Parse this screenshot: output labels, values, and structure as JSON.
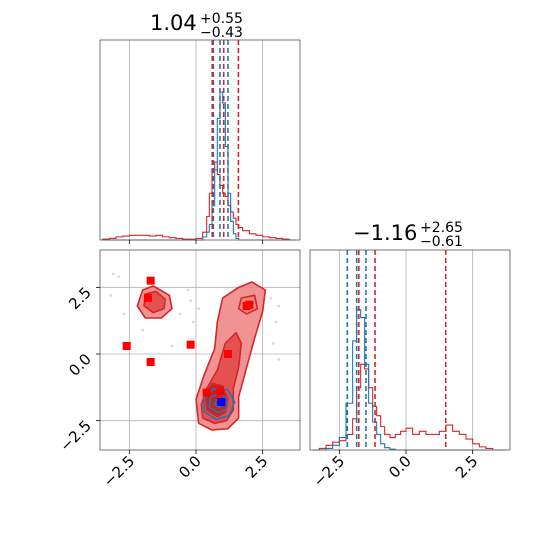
{
  "chart_data": {
    "type": "corner",
    "parameters": [
      {
        "name": "",
        "title": {
          "median": "1.04",
          "plus": "+0.55",
          "minus": "−0.43"
        }
      },
      {
        "name": "",
        "title": {
          "median": "−1.16",
          "plus": "+2.65",
          "minus": "−0.61"
        }
      }
    ],
    "axis_range": [
      -3.6,
      3.9
    ],
    "ticks": [
      -2.5,
      0.0,
      2.5
    ],
    "tick_labels": [
      "−2.5",
      "0.0",
      "2.5"
    ],
    "grid": true,
    "colors": {
      "blue": "#1f77b4",
      "red": "#d62728",
      "red_fill": "#f08080",
      "square_red": "#ff0000",
      "square_blue": "#0000ff",
      "grid": "#b0b0b0"
    },
    "marginal_1": {
      "bins": [
        -3.5,
        -3.25,
        -3.0,
        -2.75,
        -2.5,
        -2.25,
        -2.0,
        -1.75,
        -1.5,
        -1.25,
        -1.0,
        -0.75,
        -0.5,
        -0.25,
        0.0,
        0.25,
        0.4,
        0.5,
        0.6,
        0.7,
        0.8,
        0.9,
        1.0,
        1.1,
        1.2,
        1.3,
        1.4,
        1.5,
        1.6,
        1.75,
        2.0,
        2.25,
        2.5,
        2.75,
        3.0,
        3.25,
        3.5,
        3.75
      ],
      "blue_counts": [
        0,
        0,
        0,
        0,
        0,
        0,
        0,
        0,
        0,
        0,
        0,
        0,
        0,
        0,
        0,
        0.02,
        0.05,
        0.1,
        0.22,
        0.45,
        0.78,
        0.95,
        0.88,
        0.6,
        0.3,
        0.12,
        0.04,
        0.01,
        0,
        0,
        0,
        0,
        0,
        0,
        0,
        0,
        0
      ],
      "red_counts": [
        0.005,
        0.01,
        0.02,
        0.025,
        0.03,
        0.03,
        0.03,
        0.025,
        0.03,
        0.02,
        0.015,
        0.01,
        0.005,
        0.005,
        0.01,
        0.05,
        0.15,
        0.3,
        0.45,
        0.5,
        0.42,
        0.35,
        0.3,
        0.28,
        0.22,
        0.18,
        0.14,
        0.1,
        0.08,
        0.06,
        0.04,
        0.03,
        0.02,
        0.015,
        0.01,
        0.005,
        0.0
      ],
      "red_quantiles": [
        0.61,
        1.04,
        1.59
      ],
      "blue_quantiles": [
        0.65,
        0.9,
        1.2
      ]
    },
    "marginal_2": {
      "bins": [
        -3.5,
        -3.25,
        -3.0,
        -2.75,
        -2.5,
        -2.25,
        -2.0,
        -1.85,
        -1.7,
        -1.55,
        -1.4,
        -1.25,
        -1.1,
        -0.95,
        -0.8,
        -0.6,
        -0.4,
        -0.2,
        0.0,
        0.25,
        0.5,
        0.75,
        1.0,
        1.25,
        1.5,
        1.75,
        2.0,
        2.25,
        2.5,
        2.75,
        3.0,
        3.25,
        3.5,
        3.75
      ],
      "blue_counts": [
        0,
        0,
        0.01,
        0.03,
        0.08,
        0.3,
        0.7,
        0.9,
        0.85,
        0.55,
        0.3,
        0.18,
        0.1,
        0.04,
        0.015,
        0.005,
        0,
        0,
        0,
        0,
        0,
        0,
        0,
        0,
        0,
        0,
        0,
        0,
        0,
        0,
        0,
        0,
        0
      ],
      "red_counts": [
        0.0,
        0.01,
        0.03,
        0.05,
        0.06,
        0.1,
        0.2,
        0.4,
        0.55,
        0.52,
        0.4,
        0.28,
        0.22,
        0.15,
        0.1,
        0.08,
        0.1,
        0.12,
        0.14,
        0.1,
        0.12,
        0.1,
        0.1,
        0.12,
        0.16,
        0.12,
        0.1,
        0.07,
        0.04,
        0.02,
        0.01,
        0.0,
        0.0
      ],
      "red_quantiles": [
        -1.77,
        -1.16,
        1.49
      ],
      "blue_quantiles": [
        -2.2,
        -1.85,
        -1.5
      ]
    },
    "joint": {
      "red_contours": [
        {
          "level": "outer",
          "points": [
            [
              0.1,
              -2.6
            ],
            [
              0.6,
              -2.85
            ],
            [
              1.2,
              -2.8
            ],
            [
              1.6,
              -2.4
            ],
            [
              1.6,
              -1.6
            ],
            [
              1.9,
              -0.5
            ],
            [
              2.2,
              0.6
            ],
            [
              2.5,
              1.6
            ],
            [
              2.6,
              2.4
            ],
            [
              2.1,
              2.7
            ],
            [
              1.6,
              2.5
            ],
            [
              1.0,
              2.1
            ],
            [
              0.8,
              1.2
            ],
            [
              0.7,
              0.2
            ],
            [
              0.3,
              -0.8
            ],
            [
              0.0,
              -1.7
            ]
          ]
        },
        {
          "level": "mid",
          "points": [
            [
              0.25,
              -2.4
            ],
            [
              0.7,
              -2.6
            ],
            [
              1.15,
              -2.5
            ],
            [
              1.4,
              -2.1
            ],
            [
              1.4,
              -1.3
            ],
            [
              1.6,
              -0.5
            ],
            [
              1.7,
              0.4
            ],
            [
              1.5,
              0.8
            ],
            [
              1.1,
              0.4
            ],
            [
              0.8,
              -0.6
            ],
            [
              0.4,
              -1.3
            ],
            [
              0.2,
              -1.9
            ]
          ]
        },
        {
          "level": "inner",
          "points": [
            [
              0.4,
              -2.1
            ],
            [
              0.8,
              -2.35
            ],
            [
              1.1,
              -2.2
            ],
            [
              1.2,
              -1.7
            ],
            [
              1.0,
              -1.2
            ],
            [
              0.6,
              -1.1
            ],
            [
              0.35,
              -1.5
            ]
          ]
        },
        {
          "level": "outer",
          "points": [
            [
              -2.0,
              2.4
            ],
            [
              -1.6,
              2.55
            ],
            [
              -1.0,
              2.2
            ],
            [
              -0.9,
              1.7
            ],
            [
              -1.3,
              1.35
            ],
            [
              -1.9,
              1.35
            ],
            [
              -2.2,
              1.8
            ]
          ]
        },
        {
          "level": "mid",
          "points": [
            [
              -1.9,
              2.25
            ],
            [
              -1.5,
              2.35
            ],
            [
              -1.15,
              2.05
            ],
            [
              -1.2,
              1.7
            ],
            [
              -1.6,
              1.55
            ],
            [
              -1.95,
              1.8
            ]
          ]
        },
        {
          "level": "outer",
          "points": [
            [
              1.7,
              2.1
            ],
            [
              2.2,
              2.2
            ],
            [
              2.3,
              1.7
            ],
            [
              1.9,
              1.5
            ],
            [
              1.6,
              1.7
            ]
          ]
        }
      ],
      "blue_contours": [
        {
          "level": "outer",
          "points": [
            [
              0.3,
              -2.15
            ],
            [
              0.75,
              -2.45
            ],
            [
              1.25,
              -2.3
            ],
            [
              1.45,
              -1.8
            ],
            [
              1.2,
              -1.35
            ],
            [
              0.65,
              -1.3
            ],
            [
              0.3,
              -1.7
            ]
          ]
        },
        {
          "level": "mid",
          "points": [
            [
              0.5,
              -2.0
            ],
            [
              0.85,
              -2.2
            ],
            [
              1.15,
              -2.05
            ],
            [
              1.2,
              -1.7
            ],
            [
              0.9,
              -1.5
            ],
            [
              0.55,
              -1.6
            ]
          ]
        },
        {
          "level": "inner",
          "points": [
            [
              0.7,
              -1.9
            ],
            [
              0.9,
              -2.0
            ],
            [
              1.05,
              -1.85
            ],
            [
              0.95,
              -1.7
            ],
            [
              0.75,
              -1.75
            ]
          ]
        }
      ],
      "red_squares": [
        [
          -1.7,
          2.75
        ],
        [
          -1.8,
          2.1
        ],
        [
          -2.6,
          0.3
        ],
        [
          -1.7,
          -0.3
        ],
        [
          -0.2,
          0.35
        ],
        [
          2.0,
          1.85
        ],
        [
          1.9,
          1.8
        ],
        [
          0.4,
          -1.45
        ],
        [
          0.9,
          -1.4
        ],
        [
          1.2,
          0.0
        ]
      ],
      "blue_squares": [
        [
          0.95,
          -1.8
        ]
      ],
      "scatter": [
        [
          -3.1,
          3.0
        ],
        [
          -2.9,
          2.9
        ],
        [
          -0.3,
          2.4
        ],
        [
          -0.2,
          2.0
        ],
        [
          -0.6,
          1.5
        ],
        [
          -0.1,
          1.2
        ],
        [
          3.1,
          1.8
        ],
        [
          3.0,
          1.2
        ],
        [
          2.9,
          0.4
        ],
        [
          -2.0,
          0.9
        ],
        [
          -0.9,
          0.3
        ],
        [
          3.1,
          -0.2
        ],
        [
          -3.2,
          2.2
        ],
        [
          -2.7,
          1.5
        ],
        [
          0.1,
          1.7
        ],
        [
          2.8,
          2.1
        ]
      ]
    }
  }
}
